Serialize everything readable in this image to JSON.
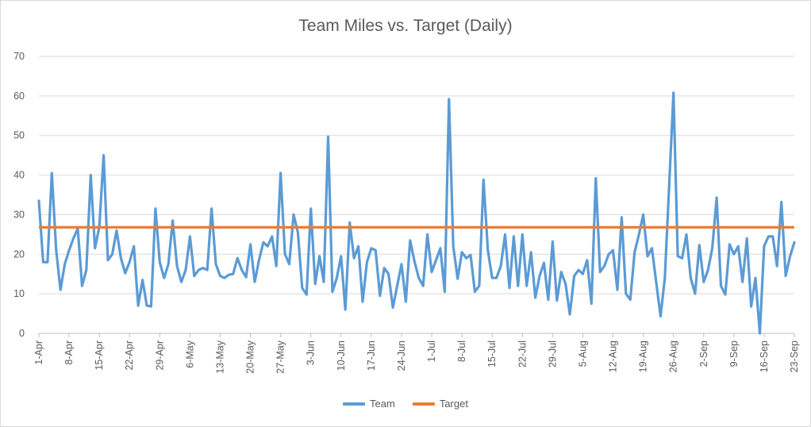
{
  "chart_data": {
    "type": "line",
    "title": "Team Miles vs. Target (Daily)",
    "xlabel": "",
    "ylabel": "",
    "ylim": [
      0,
      70
    ],
    "yticks": [
      0,
      10,
      20,
      30,
      40,
      50,
      60,
      70
    ],
    "grid": true,
    "legend_position": "bottom",
    "x_start": "1-Apr",
    "x_end": "23-Sep",
    "x_tick_labels": [
      "1-Apr",
      "8-Apr",
      "15-Apr",
      "22-Apr",
      "29-Apr",
      "6-May",
      "13-May",
      "20-May",
      "27-May",
      "3-Jun",
      "10-Jun",
      "17-Jun",
      "24-Jun",
      "1-Jul",
      "8-Jul",
      "15-Jul",
      "22-Jul",
      "29-Jul",
      "5-Aug",
      "12-Aug",
      "19-Aug",
      "26-Aug",
      "2-Sep",
      "9-Sep",
      "16-Sep",
      "23-Sep"
    ],
    "series": [
      {
        "name": "Team",
        "color": "#5b9bd5",
        "values": [
          33.5,
          18,
          18,
          40.5,
          21,
          11,
          17.5,
          21,
          24,
          26.5,
          12,
          16,
          40,
          21.5,
          27,
          45,
          18.5,
          20,
          26,
          19,
          15.2,
          18,
          22,
          7,
          13.5,
          7,
          6.8,
          31.5,
          18,
          14,
          17.5,
          28.5,
          17,
          13,
          16,
          24.5,
          14.5,
          16,
          16.5,
          16,
          31.5,
          17.5,
          14.5,
          14,
          14.8,
          15,
          19,
          16,
          14.2,
          22.5,
          13,
          18.5,
          23,
          22,
          24.5,
          17,
          40.5,
          20,
          17.5,
          30,
          25.5,
          11.5,
          9.8,
          31.5,
          12.5,
          19.5,
          13,
          49.7,
          10.5,
          14,
          19.5,
          6,
          28,
          19,
          22,
          8,
          18,
          21.5,
          21,
          9.5,
          16.5,
          15,
          6.5,
          12,
          17.5,
          8,
          23.5,
          18.2,
          14,
          12,
          25,
          15.5,
          18.5,
          21.5,
          10.5,
          59.2,
          22,
          13.8,
          20.5,
          19,
          19.8,
          10.5,
          12,
          38.8,
          21,
          14,
          14,
          17,
          25,
          11.5,
          24.5,
          12,
          25,
          12,
          20.5,
          9,
          14.5,
          17.8,
          8.5,
          23.2,
          8.3,
          15.5,
          12.5,
          4.8,
          14.5,
          16,
          15,
          18.5,
          7.5,
          39.2,
          15.5,
          17,
          20,
          21,
          11,
          29.3,
          10,
          8.5,
          20.5,
          25,
          30,
          19.5,
          21.5,
          13,
          4.3,
          14,
          37,
          60.8,
          19.5,
          19,
          25,
          14,
          10,
          22.3,
          13,
          16,
          21.5,
          34.3,
          12,
          9.8,
          22.5,
          20,
          22,
          13,
          24,
          6.8,
          14,
          0,
          22,
          24.5,
          24.5,
          17,
          33.2,
          14.5,
          19.5,
          23
        ]
      },
      {
        "name": "Target",
        "color": "#ed7d31",
        "values": [
          26.8,
          26.8
        ]
      }
    ]
  }
}
